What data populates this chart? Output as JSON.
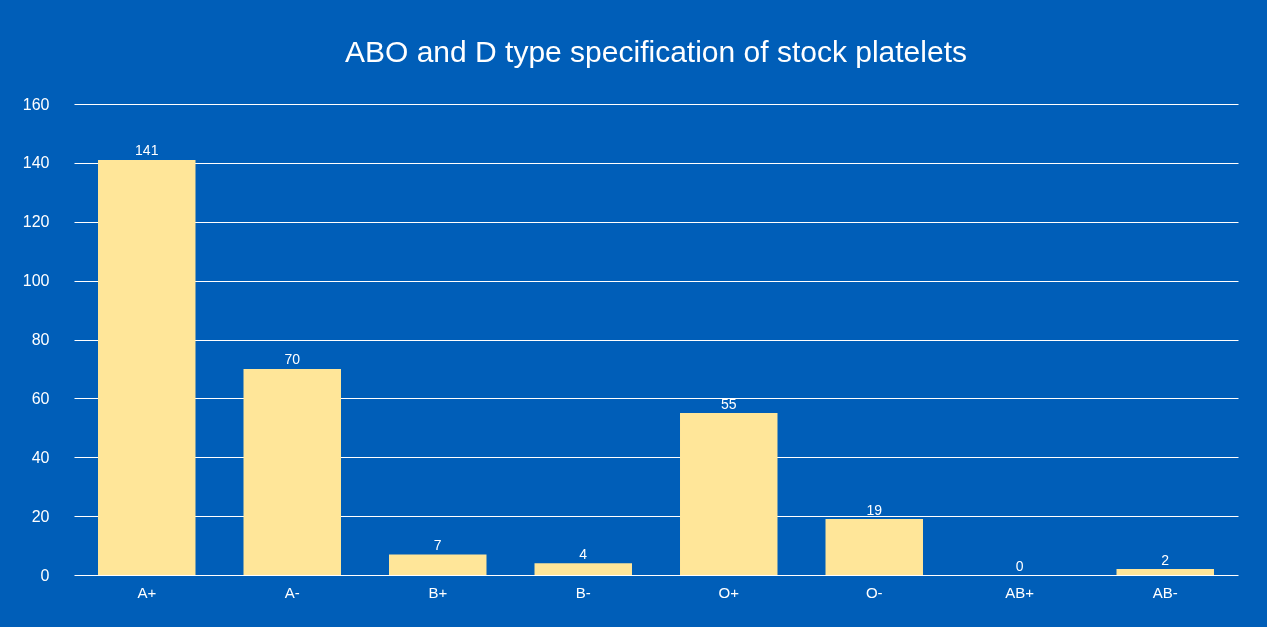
{
  "chart_data": {
    "type": "bar",
    "title": "ABO and D type specification of stock platelets",
    "categories": [
      "A+",
      "A-",
      "B+",
      "B-",
      "O+",
      "O-",
      "AB+",
      "AB-"
    ],
    "values": [
      141,
      70,
      7,
      4,
      55,
      19,
      0,
      2
    ],
    "color": "#ffe699",
    "ylim": [
      0,
      160
    ],
    "yticks": [
      0,
      20,
      40,
      60,
      80,
      100,
      120,
      140,
      160
    ],
    "grid": "y",
    "data_labels": true
  }
}
